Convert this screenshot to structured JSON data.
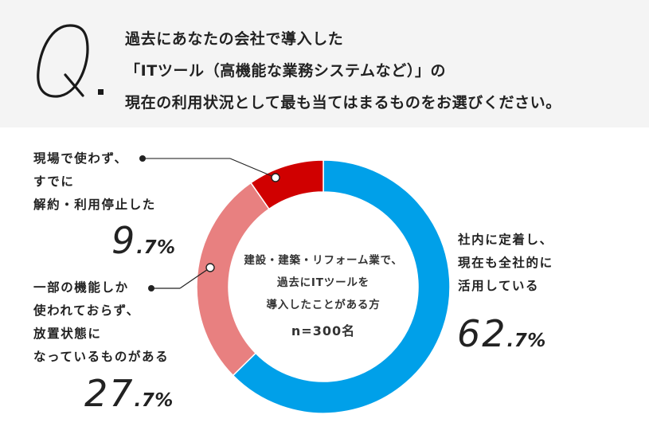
{
  "question": {
    "mark": "Q.",
    "lines": [
      "過去にあなたの会社で導入した",
      "「ITツール（高機能な業務システムなど）」の",
      "現在の利用状況として最も当てはまるものをお選びください。"
    ]
  },
  "center": {
    "lines": [
      "建設・建築・リフォーム業で、",
      "過去にITツールを",
      "導入したことがある方"
    ],
    "n_label": "n=300名"
  },
  "labels": {
    "using": {
      "lines": [
        "社内に定着し、",
        "現在も全社的に",
        "活用している"
      ],
      "pct_int": "62",
      "pct_dec": ".7%"
    },
    "partial": {
      "lines": [
        "一部の機能しか",
        "使われておらず、",
        "放置状態に",
        "なっているものがある"
      ],
      "pct_int": "27",
      "pct_dec": ".7%"
    },
    "stopped": {
      "lines": [
        "現場で使わず、",
        "すでに",
        "解約・利用停止した"
      ],
      "pct_int": "9",
      "pct_dec": ".7%"
    }
  },
  "colors": {
    "header_bg": "#f4f4f4",
    "using": "#00a0e9",
    "partial": "#e88080",
    "stopped": "#d00000",
    "text": "#222222"
  },
  "chart_data": {
    "type": "pie",
    "subtype": "donut",
    "title": "過去にあなたの会社で導入した「ITツール（高機能な業務システムなど）」の現在の利用状況として最も当てはまるものをお選びください。",
    "center_label": "建設・建築・リフォーム業で、過去にITツールを導入したことがある方 n=300名",
    "sample_size": 300,
    "categories": [
      "社内に定着し、現在も全社的に活用している",
      "一部の機能しか使われておらず、放置状態になっているものがある",
      "現場で使わず、すでに解約・利用停止した"
    ],
    "values": [
      62.7,
      27.7,
      9.7
    ],
    "unit": "%",
    "colors": [
      "#00a0e9",
      "#e88080",
      "#d00000"
    ],
    "start_angle": "12 o'clock, clockwise",
    "legend": "direct labels with leader lines"
  }
}
